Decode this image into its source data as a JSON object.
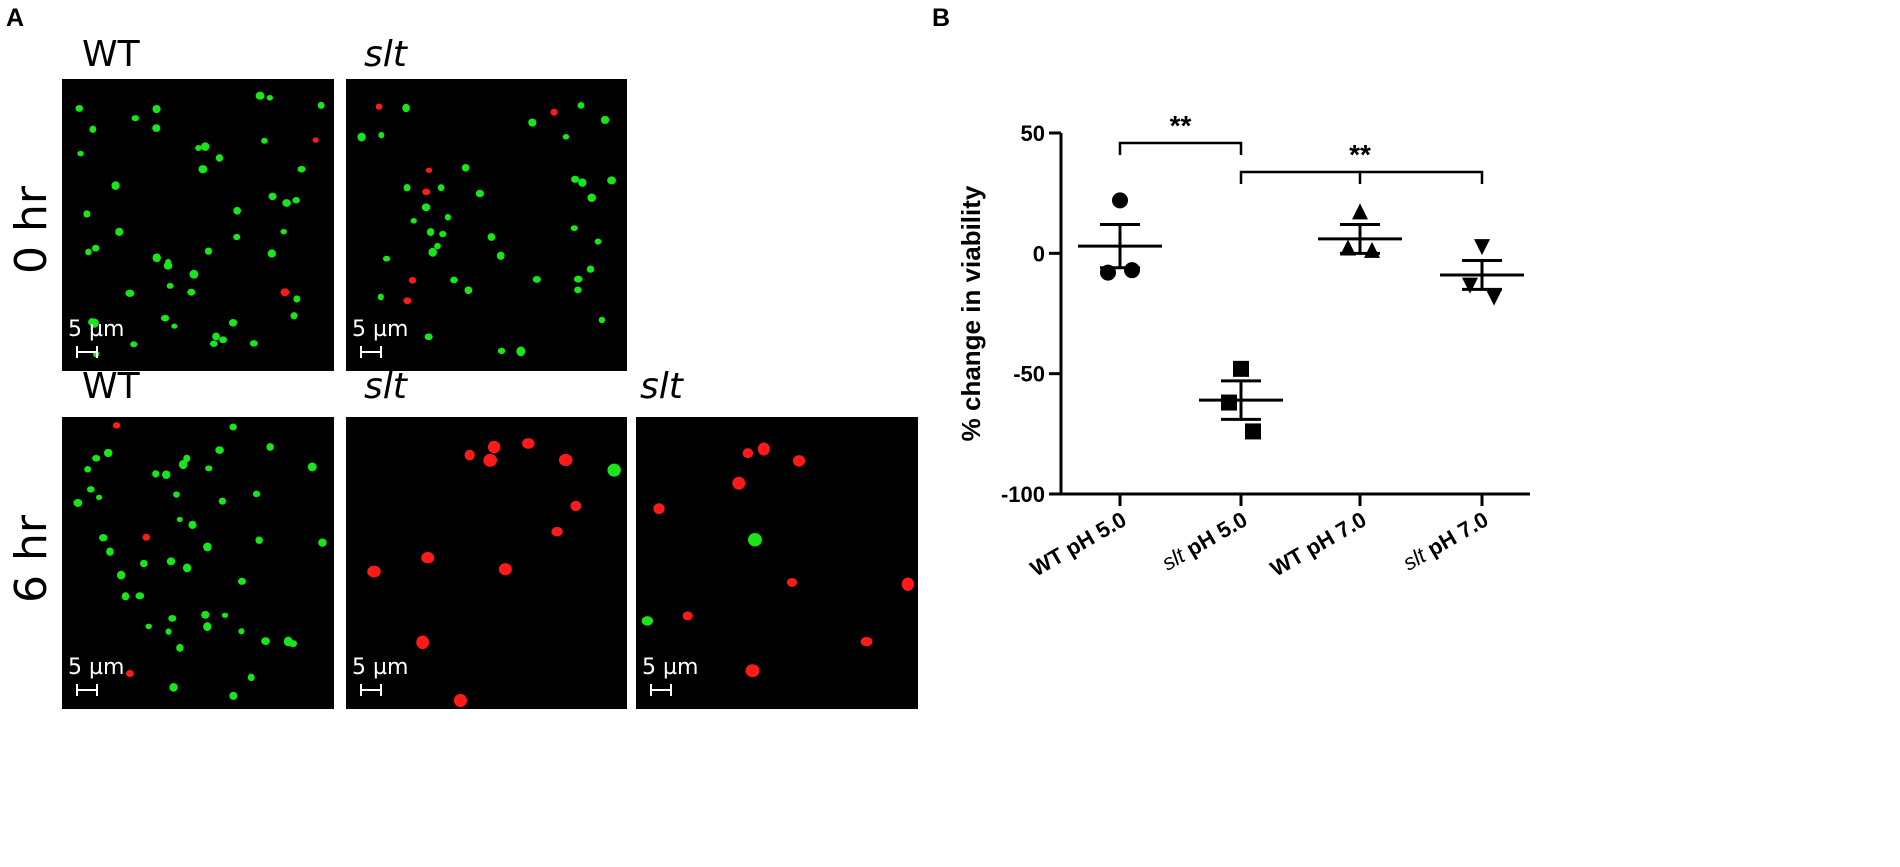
{
  "figure": {
    "panel_a_label": "A",
    "panel_b_label": "B",
    "rows": [
      "0 hr",
      "6 hr"
    ],
    "images": [
      {
        "label": "WT",
        "italic": false,
        "scale": "5 µm",
        "green_cells": 48,
        "red_cells": 2,
        "seed": 11
      },
      {
        "label": "slt",
        "italic": true,
        "scale": "5 µm",
        "green_cells": 38,
        "red_cells": 6,
        "seed": 23
      },
      {
        "label": "WT",
        "italic": false,
        "scale": "5 µm",
        "green_cells": 46,
        "red_cells": 3,
        "seed": 37
      },
      {
        "label": "slt",
        "italic": true,
        "scale": "5 µm",
        "green_cells": 1,
        "red_cells": 12,
        "seed": 41
      },
      {
        "label": "slt",
        "italic": true,
        "scale": "5 µm",
        "green_cells": 2,
        "red_cells": 10,
        "seed": 53
      }
    ],
    "colors": {
      "green_cell": "#19e619",
      "red_cell": "#ff1a1a",
      "background": "#000000"
    }
  },
  "chart_data": {
    "type": "scatter",
    "ylabel": "% change in viability",
    "ylim": [
      -100,
      50
    ],
    "yticks": [
      50,
      0,
      -50,
      -100
    ],
    "categories": [
      {
        "prefix": "",
        "italic_prefix": "",
        "label": "WT pH 5.0"
      },
      {
        "prefix": "slt",
        "italic_prefix": "slt",
        "label": " pH 5.0"
      },
      {
        "prefix": "",
        "italic_prefix": "",
        "label": "WT pH 7.0"
      },
      {
        "prefix": "slt",
        "italic_prefix": "slt",
        "label": " pH 7.0"
      }
    ],
    "series": [
      {
        "marker": "circle",
        "points": [
          22,
          -8,
          -7
        ],
        "mean": 3,
        "sem_upper": 12,
        "sem_lower": -6
      },
      {
        "marker": "square",
        "points": [
          -48,
          -62,
          -74
        ],
        "mean": -61,
        "sem_upper": -53,
        "sem_lower": -69
      },
      {
        "marker": "triangle-up",
        "points": [
          17,
          2,
          1
        ],
        "mean": 6,
        "sem_upper": 12,
        "sem_lower": 0
      },
      {
        "marker": "triangle-down",
        "points": [
          3,
          -13,
          -18
        ],
        "mean": -9,
        "sem_upper": -3,
        "sem_lower": -15
      }
    ],
    "significance": [
      {
        "from": 0,
        "to": 1,
        "label": "**"
      },
      {
        "from": 1,
        "to": 3,
        "label": "**"
      }
    ]
  }
}
